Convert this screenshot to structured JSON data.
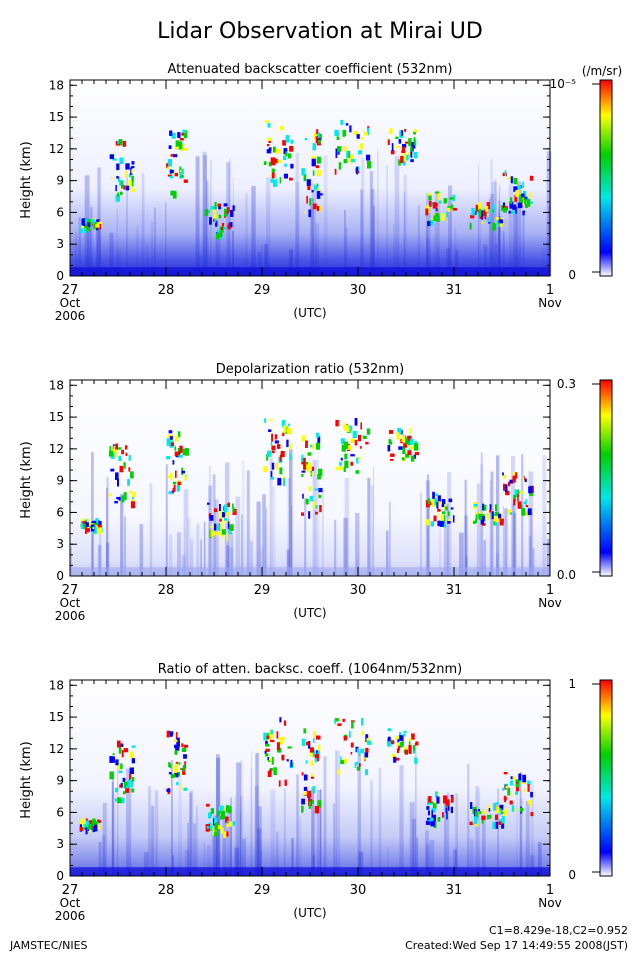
{
  "figure": {
    "title": "Lidar Observation at Mirai UD",
    "credit": "JAMSTEC/NIES",
    "constants": "C1=8.429e-18,C2=0.952",
    "created": "Created:Wed Sep 17 14:49:55 2008(JST)"
  },
  "chart_data": [
    {
      "type": "heatmap",
      "title": "Attenuated backscatter coefficient (532nm)",
      "ylabel": "Height (km)",
      "xlabel": "(UTC)",
      "ylim": [
        0,
        18.5
      ],
      "y_ticks": [
        "0",
        "3",
        "6",
        "9",
        "12",
        "15",
        "18"
      ],
      "x_ticks": [
        {
          "label": "27",
          "sub": "Oct",
          "sub2": "2006"
        },
        {
          "label": "28"
        },
        {
          "label": "29"
        },
        {
          "label": "30"
        },
        {
          "label": "31"
        },
        {
          "label": "1",
          "sub": "Nov"
        }
      ],
      "colorbar": {
        "unit": "(/m/sr)",
        "max_label": "10⁻⁵",
        "min_label": "0",
        "colors": [
          "#ffffff",
          "#0000ff",
          "#00e8e8",
          "#00d000",
          "#ffff00",
          "#ff0000"
        ]
      },
      "grid": false
    },
    {
      "type": "heatmap",
      "title": "Depolarization ratio (532nm)",
      "ylabel": "Height (km)",
      "xlabel": "(UTC)",
      "ylim": [
        0,
        18.5
      ],
      "y_ticks": [
        "0",
        "3",
        "6",
        "9",
        "12",
        "15",
        "18"
      ],
      "x_ticks": [
        {
          "label": "27",
          "sub": "Oct",
          "sub2": "2006"
        },
        {
          "label": "28"
        },
        {
          "label": "29"
        },
        {
          "label": "30"
        },
        {
          "label": "31"
        },
        {
          "label": "1",
          "sub": "Nov"
        }
      ],
      "colorbar": {
        "unit": "",
        "max_label": "0.3",
        "min_label": "0.0",
        "colors": [
          "#ffffff",
          "#0000ff",
          "#00e8e8",
          "#00d000",
          "#ffff00",
          "#ff0000"
        ]
      },
      "grid": false
    },
    {
      "type": "heatmap",
      "title": "Ratio of atten. backsc. coeff. (1064nm/532nm)",
      "ylabel": "Height (km)",
      "xlabel": "(UTC)",
      "ylim": [
        0,
        18.5
      ],
      "y_ticks": [
        "0",
        "3",
        "6",
        "9",
        "12",
        "15",
        "18"
      ],
      "x_ticks": [
        {
          "label": "27",
          "sub": "Oct",
          "sub2": "2006"
        },
        {
          "label": "28"
        },
        {
          "label": "29"
        },
        {
          "label": "30"
        },
        {
          "label": "31"
        },
        {
          "label": "1",
          "sub": "Nov"
        }
      ],
      "colorbar": {
        "unit": "",
        "max_label": "1",
        "min_label": "0",
        "colors": [
          "#ffffff",
          "#0000ff",
          "#00e8e8",
          "#00d000",
          "#ffff00",
          "#ff0000"
        ]
      },
      "grid": false
    }
  ]
}
